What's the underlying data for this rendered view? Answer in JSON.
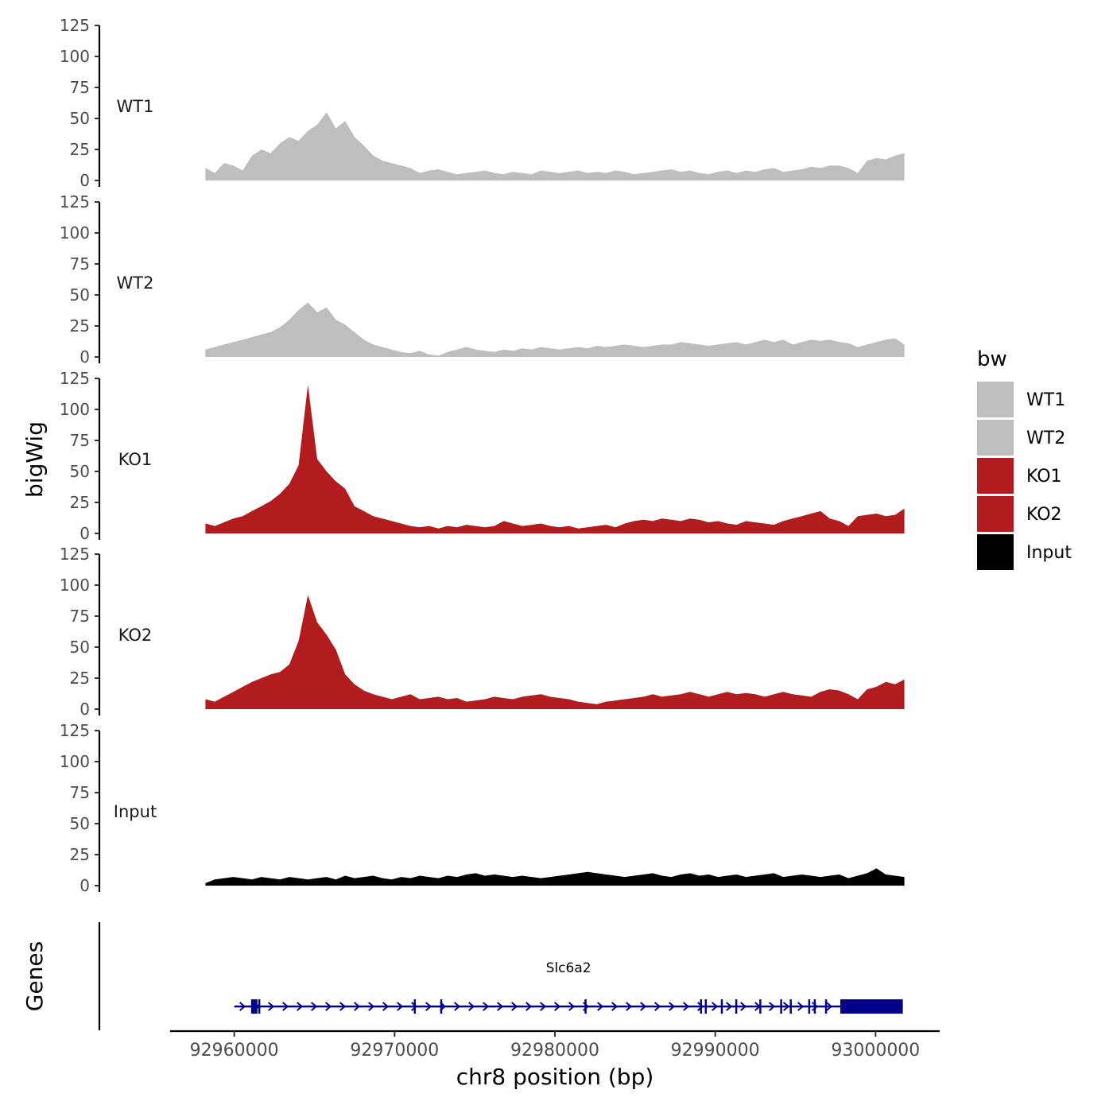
{
  "chart_data": {
    "type": "area",
    "title": "",
    "ylabel": "bigWig",
    "xlabel": "chr8 position (bp)",
    "genes_label": "Genes",
    "xlim": [
      92956000,
      93004000
    ],
    "ylim": [
      0,
      125
    ],
    "y_ticks": [
      0,
      25,
      50,
      75,
      100,
      125
    ],
    "x_ticks": [
      92960000,
      92970000,
      92980000,
      92990000,
      93000000
    ],
    "x_tick_labels": [
      "92960000",
      "92970000",
      "92980000",
      "92990000",
      "93000000"
    ],
    "track_start": 92958200,
    "track_end": 93001800,
    "legend": {
      "title": "bw",
      "entries": [
        {
          "label": "WT1",
          "color": "#bebebe"
        },
        {
          "label": "WT2",
          "color": "#bebebe"
        },
        {
          "label": "KO1",
          "color": "#b21c1f"
        },
        {
          "label": "KO2",
          "color": "#b21c1f"
        },
        {
          "label": "Input",
          "color": "#000000"
        }
      ]
    },
    "series": [
      {
        "name": "WT1",
        "color": "#bebebe",
        "values": [
          10,
          6,
          14,
          12,
          8,
          20,
          25,
          22,
          30,
          35,
          32,
          40,
          45,
          55,
          42,
          48,
          35,
          28,
          20,
          16,
          14,
          12,
          10,
          6,
          8,
          9,
          7,
          5,
          6,
          7,
          8,
          6,
          5,
          7,
          6,
          5,
          8,
          7,
          6,
          7,
          8,
          6,
          7,
          6,
          8,
          7,
          5,
          6,
          7,
          8,
          9,
          7,
          8,
          6,
          5,
          7,
          8,
          6,
          8,
          7,
          9,
          10,
          7,
          8,
          9,
          11,
          10,
          12,
          12,
          10,
          6,
          16,
          18,
          17,
          20,
          22
        ]
      },
      {
        "name": "WT2",
        "color": "#bebebe",
        "values": [
          6,
          8,
          10,
          12,
          14,
          16,
          18,
          20,
          24,
          30,
          38,
          44,
          36,
          40,
          30,
          26,
          20,
          14,
          10,
          8,
          6,
          4,
          3,
          5,
          2,
          1,
          4,
          6,
          8,
          6,
          5,
          4,
          6,
          5,
          7,
          6,
          8,
          7,
          6,
          7,
          8,
          7,
          9,
          8,
          9,
          10,
          9,
          8,
          9,
          10,
          10,
          12,
          11,
          10,
          9,
          10,
          11,
          12,
          10,
          12,
          14,
          12,
          14,
          10,
          12,
          14,
          13,
          14,
          12,
          11,
          8,
          10,
          12,
          14,
          15,
          10
        ]
      },
      {
        "name": "KO1",
        "color": "#b21c1f",
        "values": [
          8,
          6,
          9,
          12,
          14,
          18,
          22,
          26,
          32,
          40,
          55,
          120,
          60,
          50,
          42,
          36,
          22,
          18,
          14,
          12,
          10,
          8,
          6,
          5,
          6,
          4,
          6,
          5,
          7,
          6,
          5,
          6,
          10,
          8,
          6,
          7,
          8,
          6,
          5,
          6,
          4,
          5,
          6,
          7,
          5,
          8,
          10,
          11,
          10,
          12,
          11,
          10,
          12,
          11,
          9,
          10,
          8,
          7,
          10,
          9,
          8,
          7,
          10,
          12,
          14,
          16,
          18,
          12,
          10,
          6,
          14,
          15,
          16,
          14,
          15,
          20
        ]
      },
      {
        "name": "KO2",
        "color": "#b21c1f",
        "values": [
          8,
          6,
          10,
          14,
          18,
          22,
          25,
          28,
          30,
          36,
          55,
          92,
          70,
          60,
          48,
          28,
          20,
          15,
          12,
          10,
          8,
          10,
          12,
          8,
          9,
          10,
          8,
          9,
          6,
          7,
          8,
          10,
          9,
          8,
          10,
          11,
          12,
          10,
          9,
          8,
          6,
          5,
          4,
          6,
          7,
          8,
          9,
          10,
          12,
          10,
          11,
          12,
          14,
          12,
          10,
          12,
          14,
          12,
          13,
          12,
          10,
          12,
          14,
          12,
          11,
          10,
          14,
          16,
          15,
          12,
          8,
          16,
          18,
          22,
          20,
          24
        ]
      },
      {
        "name": "Input",
        "color": "#000000",
        "values": [
          2,
          5,
          6,
          7,
          6,
          5,
          7,
          6,
          5,
          7,
          6,
          5,
          6,
          7,
          5,
          8,
          6,
          7,
          8,
          6,
          5,
          7,
          6,
          8,
          7,
          6,
          8,
          7,
          9,
          10,
          8,
          9,
          8,
          7,
          8,
          7,
          6,
          7,
          8,
          9,
          10,
          11,
          10,
          9,
          8,
          7,
          8,
          9,
          10,
          8,
          7,
          9,
          10,
          8,
          9,
          7,
          8,
          9,
          7,
          8,
          9,
          10,
          7,
          8,
          9,
          8,
          7,
          8,
          9,
          6,
          8,
          10,
          14,
          9,
          8,
          7
        ]
      }
    ],
    "gene": {
      "name": "Slc6a2",
      "color": "#00008b",
      "start": 92960000,
      "end": 93001700,
      "exons": [
        [
          92961050,
          92961450
        ],
        [
          92961500,
          92961600
        ],
        [
          92971200,
          92971280
        ],
        [
          92972850,
          92972950
        ],
        [
          92981850,
          92981930
        ],
        [
          92989050,
          92989100
        ],
        [
          92989350,
          92989420
        ],
        [
          92990350,
          92990420
        ],
        [
          92991250,
          92991320
        ],
        [
          92992750,
          92992830
        ],
        [
          92994050,
          92994120
        ],
        [
          92994650,
          92994720
        ],
        [
          92995800,
          92995850
        ],
        [
          92996150,
          92996220
        ],
        [
          92996850,
          92996920
        ],
        [
          92997800,
          93001700
        ]
      ]
    }
  }
}
